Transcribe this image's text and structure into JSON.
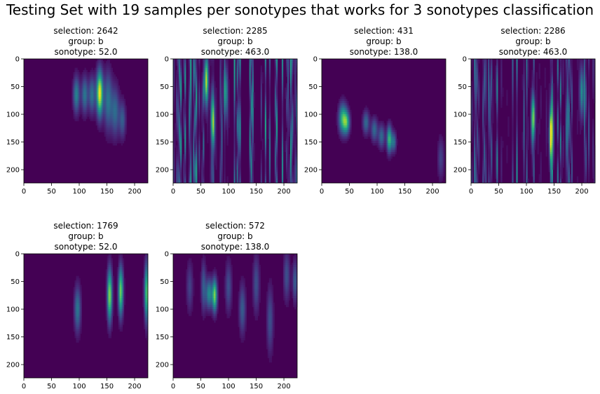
{
  "figure": {
    "title": "Testing Set with 19 samples per sonotypes that works for 3 sonotypes classification"
  },
  "colors": {
    "background": "#440154",
    "colormap": "viridis",
    "axis": "#000000"
  },
  "chart_data": [
    {
      "type": "heatmap",
      "title_lines": [
        "selection: 2642",
        "group: b",
        "sonotype: 52.0"
      ],
      "xlim": [
        0,
        224
      ],
      "ylim": [
        224,
        0
      ],
      "xticks": [
        0,
        50,
        100,
        150,
        200
      ],
      "yticks": [
        0,
        50,
        100,
        150,
        200
      ],
      "pattern": {
        "type": "blobs",
        "blobs": [
          {
            "x": 95,
            "y": 65,
            "wx": 4,
            "wy": 22,
            "a": 0.45
          },
          {
            "x": 110,
            "y": 65,
            "wx": 4,
            "wy": 22,
            "a": 0.4
          },
          {
            "x": 123,
            "y": 65,
            "wx": 4,
            "wy": 22,
            "a": 0.4
          },
          {
            "x": 137,
            "y": 62,
            "wx": 4,
            "wy": 28,
            "a": 1.0
          },
          {
            "x": 152,
            "y": 75,
            "wx": 5,
            "wy": 35,
            "a": 0.4
          },
          {
            "x": 165,
            "y": 95,
            "wx": 5,
            "wy": 30,
            "a": 0.35
          },
          {
            "x": 178,
            "y": 110,
            "wx": 4,
            "wy": 22,
            "a": 0.3
          }
        ]
      }
    },
    {
      "type": "heatmap",
      "title_lines": [
        "selection: 2285",
        "group: b",
        "sonotype: 463.0"
      ],
      "xlim": [
        0,
        224
      ],
      "ylim": [
        224,
        0
      ],
      "xticks": [
        0,
        50,
        100,
        150,
        200
      ],
      "yticks": [
        0,
        50,
        100,
        150,
        200
      ],
      "pattern": {
        "type": "streaks",
        "seed": 11,
        "density": 0.55,
        "amp": 0.55,
        "peaks": [
          [
            60,
            40,
            0.9
          ],
          [
            72,
            120,
            0.7
          ],
          [
            95,
            60,
            0.5
          ]
        ]
      }
    },
    {
      "type": "heatmap",
      "title_lines": [
        "selection: 431",
        "group: b",
        "sonotype: 138.0"
      ],
      "xlim": [
        0,
        224
      ],
      "ylim": [
        224,
        0
      ],
      "xticks": [
        0,
        50,
        100,
        150,
        200
      ],
      "yticks": [
        0,
        50,
        100,
        150,
        200
      ],
      "pattern": {
        "type": "blobs",
        "blobs": [
          {
            "x": 38,
            "y": 108,
            "wx": 5,
            "wy": 18,
            "a": 0.65
          },
          {
            "x": 45,
            "y": 115,
            "wx": 4,
            "wy": 14,
            "a": 0.55
          },
          {
            "x": 80,
            "y": 115,
            "wx": 4,
            "wy": 14,
            "a": 0.35
          },
          {
            "x": 95,
            "y": 128,
            "wx": 4,
            "wy": 14,
            "a": 0.35
          },
          {
            "x": 108,
            "y": 140,
            "wx": 4,
            "wy": 14,
            "a": 0.35
          },
          {
            "x": 122,
            "y": 145,
            "wx": 3,
            "wy": 16,
            "a": 0.7
          },
          {
            "x": 130,
            "y": 150,
            "wx": 3,
            "wy": 12,
            "a": 0.4
          },
          {
            "x": 215,
            "y": 180,
            "wx": 4,
            "wy": 25,
            "a": 0.2
          }
        ]
      }
    },
    {
      "type": "heatmap",
      "title_lines": [
        "selection: 2286",
        "group: b",
        "sonotype: 463.0"
      ],
      "xlim": [
        0,
        224
      ],
      "ylim": [
        224,
        0
      ],
      "xticks": [
        0,
        50,
        100,
        150,
        200
      ],
      "yticks": [
        0,
        50,
        100,
        150,
        200
      ],
      "pattern": {
        "type": "streaks",
        "seed": 23,
        "density": 0.45,
        "amp": 0.45,
        "peaks": [
          [
            112,
            110,
            0.6
          ],
          [
            145,
            135,
            0.9
          ],
          [
            200,
            60,
            0.5
          ]
        ]
      }
    },
    {
      "type": "heatmap",
      "title_lines": [
        "selection: 1769",
        "group: b",
        "sonotype: 52.0"
      ],
      "xlim": [
        0,
        224
      ],
      "ylim": [
        224,
        0
      ],
      "xticks": [
        0,
        50,
        100,
        150,
        200
      ],
      "yticks": [
        0,
        50,
        100,
        150,
        200
      ],
      "pattern": {
        "type": "blobs",
        "blobs": [
          {
            "x": 97,
            "y": 100,
            "wx": 4,
            "wy": 28,
            "a": 0.4
          },
          {
            "x": 155,
            "y": 75,
            "wx": 3,
            "wy": 32,
            "a": 0.85
          },
          {
            "x": 175,
            "y": 68,
            "wx": 3,
            "wy": 30,
            "a": 0.8
          },
          {
            "x": 222,
            "y": 70,
            "wx": 3,
            "wy": 35,
            "a": 0.75
          }
        ]
      }
    },
    {
      "type": "heatmap",
      "title_lines": [
        "selection: 572",
        "group: b",
        "sonotype: 138.0"
      ],
      "xlim": [
        0,
        224
      ],
      "ylim": [
        224,
        0
      ],
      "xticks": [
        0,
        50,
        100,
        150,
        200
      ],
      "yticks": [
        0,
        50,
        100,
        150,
        200
      ],
      "pattern": {
        "type": "blobs",
        "blobs": [
          {
            "x": 65,
            "y": 72,
            "wx": 4,
            "wy": 18,
            "a": 0.5
          },
          {
            "x": 75,
            "y": 75,
            "wx": 3,
            "wy": 20,
            "a": 0.8
          },
          {
            "x": 55,
            "y": 60,
            "wx": 3,
            "wy": 30,
            "a": 0.3
          },
          {
            "x": 100,
            "y": 60,
            "wx": 4,
            "wy": 30,
            "a": 0.25
          },
          {
            "x": 125,
            "y": 100,
            "wx": 4,
            "wy": 30,
            "a": 0.3
          },
          {
            "x": 150,
            "y": 55,
            "wx": 4,
            "wy": 35,
            "a": 0.25
          },
          {
            "x": 175,
            "y": 120,
            "wx": 4,
            "wy": 40,
            "a": 0.25
          },
          {
            "x": 205,
            "y": 40,
            "wx": 4,
            "wy": 30,
            "a": 0.25
          },
          {
            "x": 30,
            "y": 60,
            "wx": 4,
            "wy": 30,
            "a": 0.2
          },
          {
            "x": 220,
            "y": 50,
            "wx": 3,
            "wy": 25,
            "a": 0.3
          }
        ]
      }
    }
  ]
}
